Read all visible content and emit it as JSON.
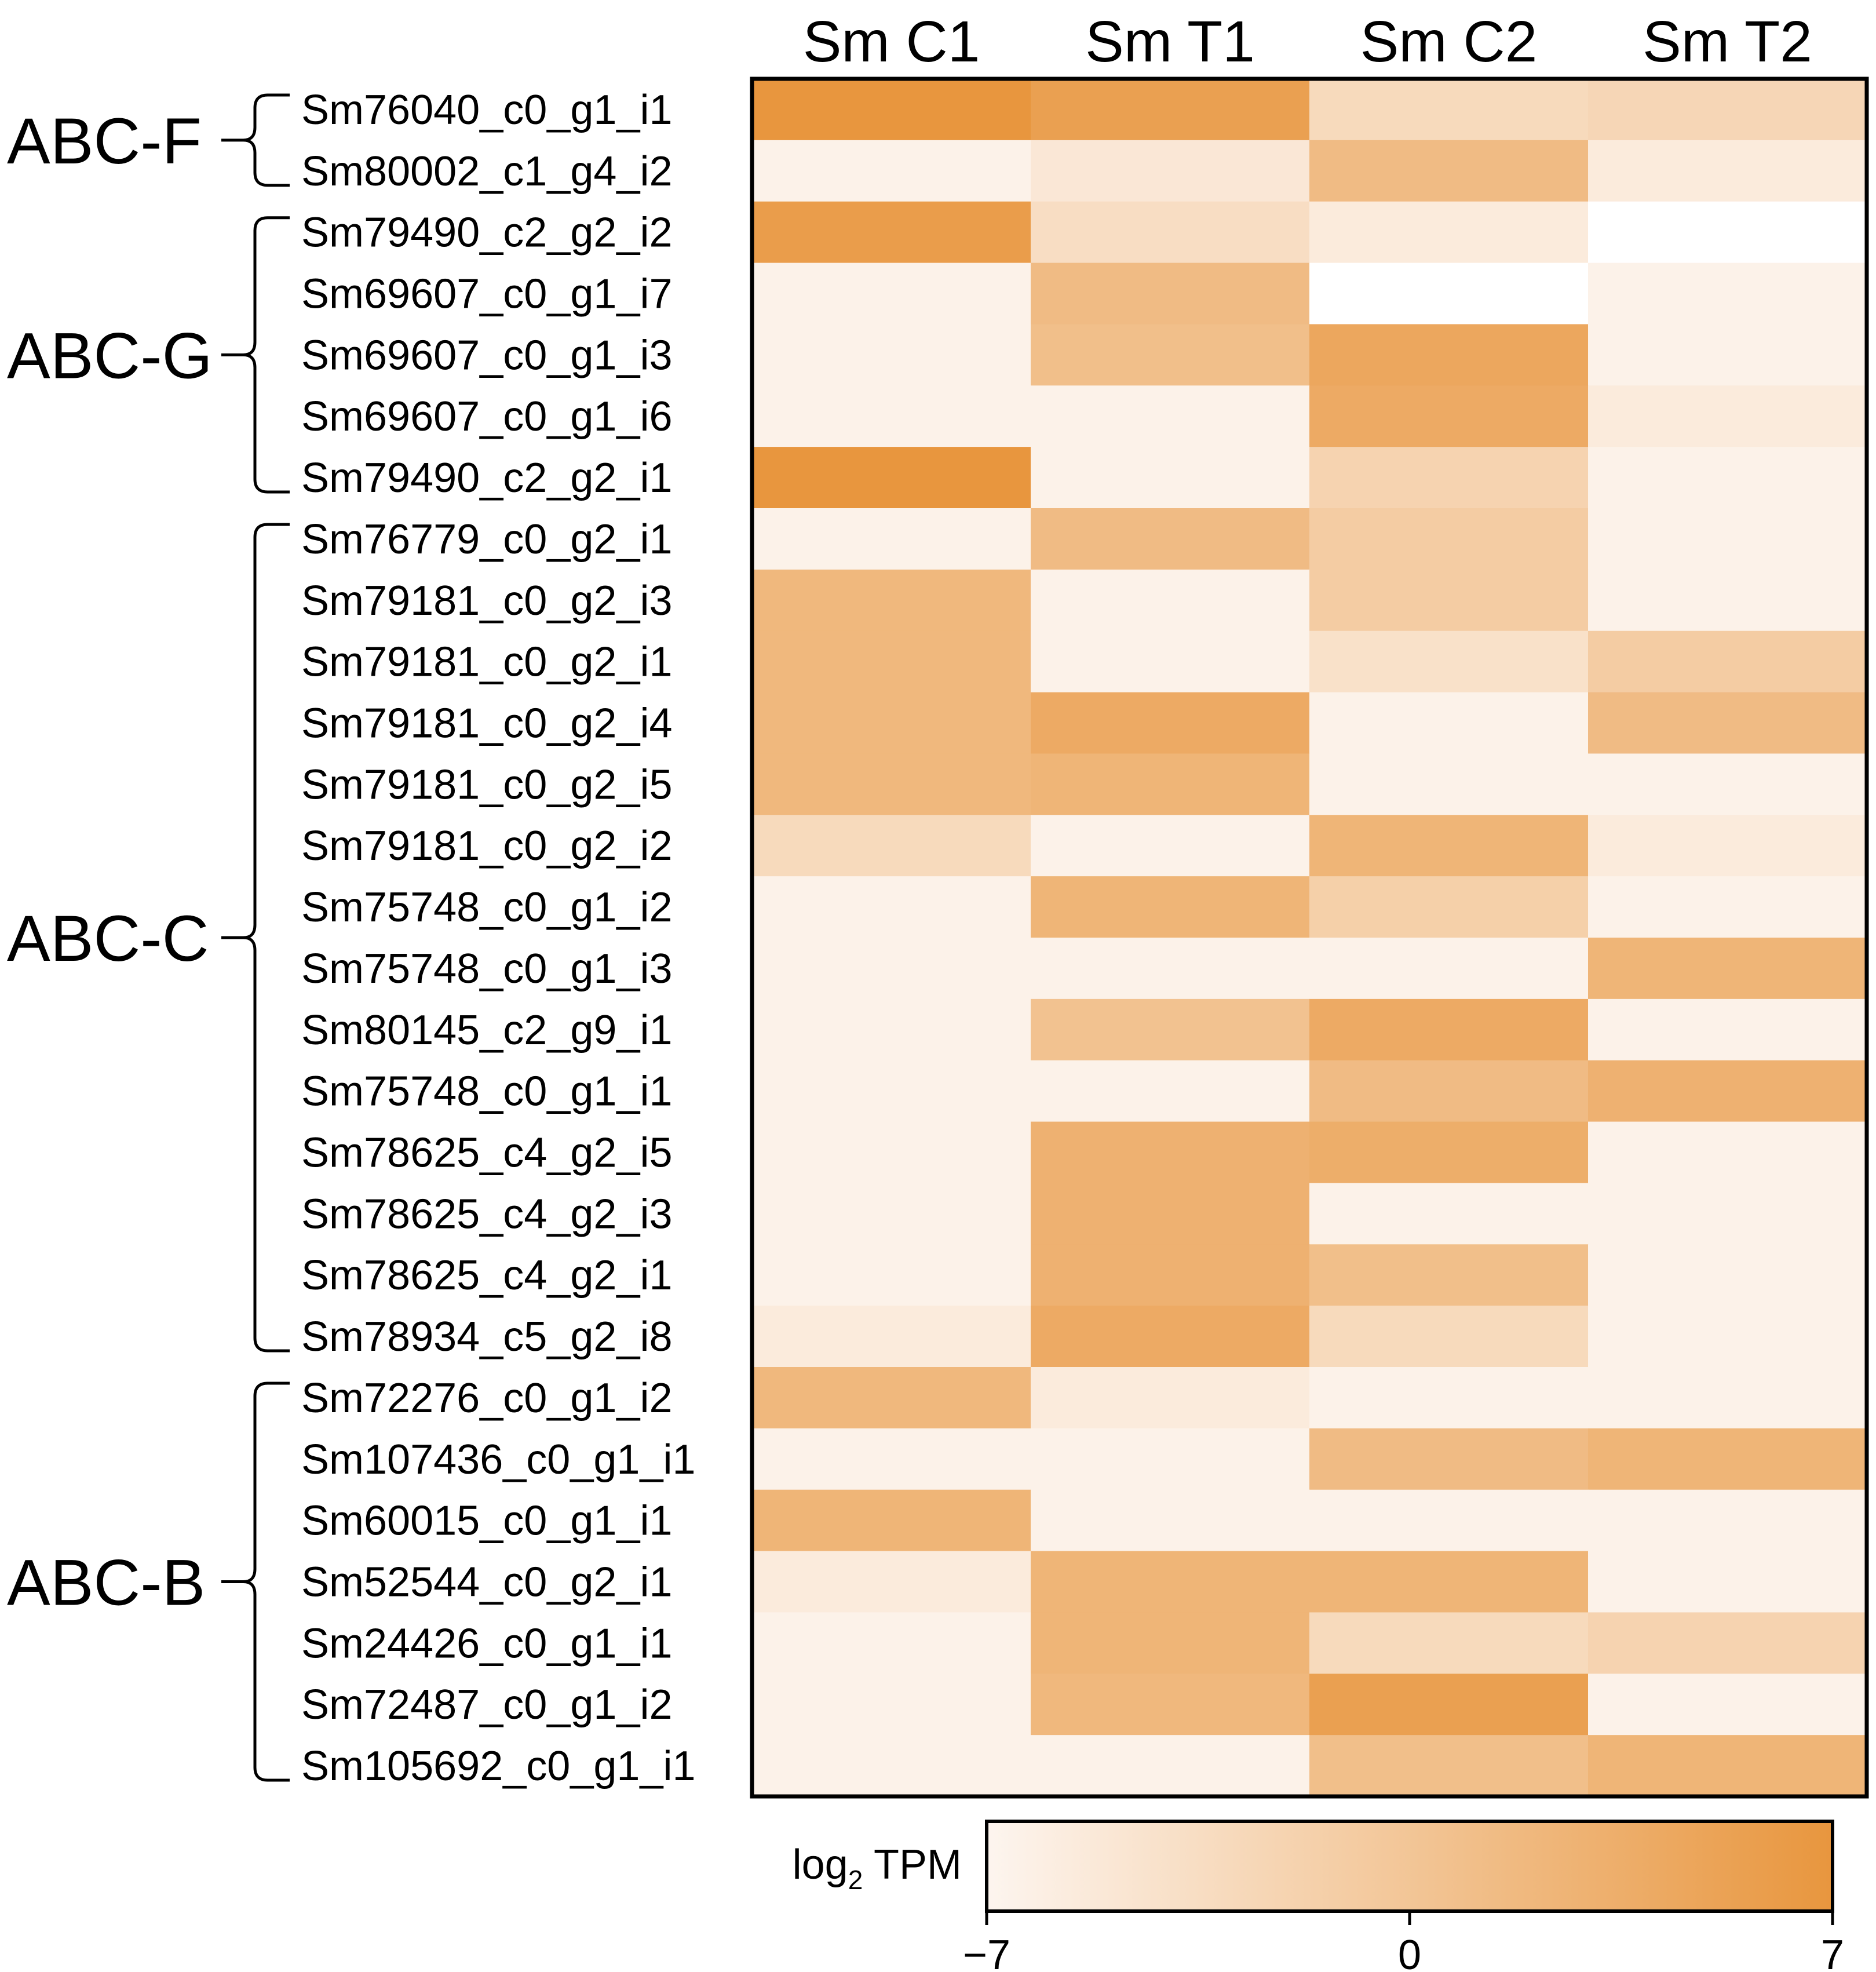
{
  "chart_data": {
    "type": "heatmap",
    "columns": [
      "Sm C1",
      "Sm T1",
      "Sm C2",
      "Sm T2"
    ],
    "rows": [
      "Sm76040_c0_g1_i1",
      "Sm80002_c1_g4_i2",
      "Sm79490_c2_g2_i2",
      "Sm69607_c0_g1_i7",
      "Sm69607_c0_g1_i3",
      "Sm69607_c0_g1_i6",
      "Sm79490_c2_g2_i1",
      "Sm76779_c0_g2_i1",
      "Sm79181_c0_g2_i3",
      "Sm79181_c0_g2_i1",
      "Sm79181_c0_g2_i4",
      "Sm79181_c0_g2_i5",
      "Sm79181_c0_g2_i2",
      "Sm75748_c0_g1_i2",
      "Sm75748_c0_g1_i3",
      "Sm80145_c2_g9_i1",
      "Sm75748_c0_g1_i1",
      "Sm78625_c4_g2_i5",
      "Sm78625_c4_g2_i3",
      "Sm78625_c4_g2_i1",
      "Sm78934_c5_g2_i8",
      "Sm72276_c0_g1_i2",
      "Sm107436_c0_g1_i1",
      "Sm60015_c0_g1_i1",
      "Sm52544_c0_g2_i1",
      "Sm24426_c0_g1_i1",
      "Sm72487_c0_g1_i2",
      "Sm105692_c0_g1_i1"
    ],
    "values": [
      [
        7,
        5.5,
        -3,
        -2.5
      ],
      [
        -6.5,
        -5,
        1.5,
        -5.5
      ],
      [
        6,
        -3.5,
        -5.5,
        null
      ],
      [
        -6.5,
        1.5,
        null,
        -6.5
      ],
      [
        -6.5,
        1,
        4.5,
        -6.5
      ],
      [
        -6.5,
        -6.5,
        4,
        -5.5
      ],
      [
        7,
        -6.5,
        -2,
        -6.5
      ],
      [
        -6.5,
        1.5,
        -1,
        -6.5
      ],
      [
        2,
        -6.5,
        -1,
        -6.5
      ],
      [
        2,
        -6.5,
        -4,
        -1
      ],
      [
        2,
        4,
        -6.5,
        1.5
      ],
      [
        2,
        2.5,
        -6.5,
        -6.5
      ],
      [
        -3,
        -6.5,
        2.5,
        -5.5
      ],
      [
        -6.5,
        2.5,
        -1.5,
        -6.5
      ],
      [
        -6.5,
        -6.5,
        -6.5,
        2.5
      ],
      [
        -6.5,
        0.5,
        4,
        -6.5
      ],
      [
        -6.5,
        -6.5,
        1.5,
        3
      ],
      [
        -6.5,
        3,
        3.5,
        -6.5
      ],
      [
        -6.5,
        3,
        -6.5,
        -6.5
      ],
      [
        -6.5,
        3,
        1,
        -6.5
      ],
      [
        -5.5,
        4,
        -3,
        -6.5
      ],
      [
        2,
        -5.5,
        -6.5,
        -6.5
      ],
      [
        -6.5,
        -6.5,
        1.5,
        2.5
      ],
      [
        2.5,
        -6.5,
        -6.5,
        -6.5
      ],
      [
        -5.5,
        2.5,
        2.5,
        -6.5
      ],
      [
        -6.5,
        2.5,
        -3,
        -2
      ],
      [
        -6.5,
        2,
        5.5,
        -6.5
      ],
      [
        -6.5,
        -6.5,
        1,
        2.5
      ]
    ],
    "groups": [
      {
        "name": "ABC-F",
        "start": 0,
        "end": 1
      },
      {
        "name": "ABC-G",
        "start": 2,
        "end": 6
      },
      {
        "name": "ABC-C",
        "start": 7,
        "end": 20
      },
      {
        "name": "ABC-B",
        "start": 21,
        "end": 27
      }
    ],
    "colorbar": {
      "label_main": "log",
      "label_sub": "2",
      "label_unit": " TPM",
      "min": -7,
      "max": 7,
      "ticks": [
        "−7",
        "0",
        "7"
      ],
      "color_low": "#fdf5ef",
      "color_high": "#e8963e"
    },
    "missing_color": "#ffffff"
  }
}
